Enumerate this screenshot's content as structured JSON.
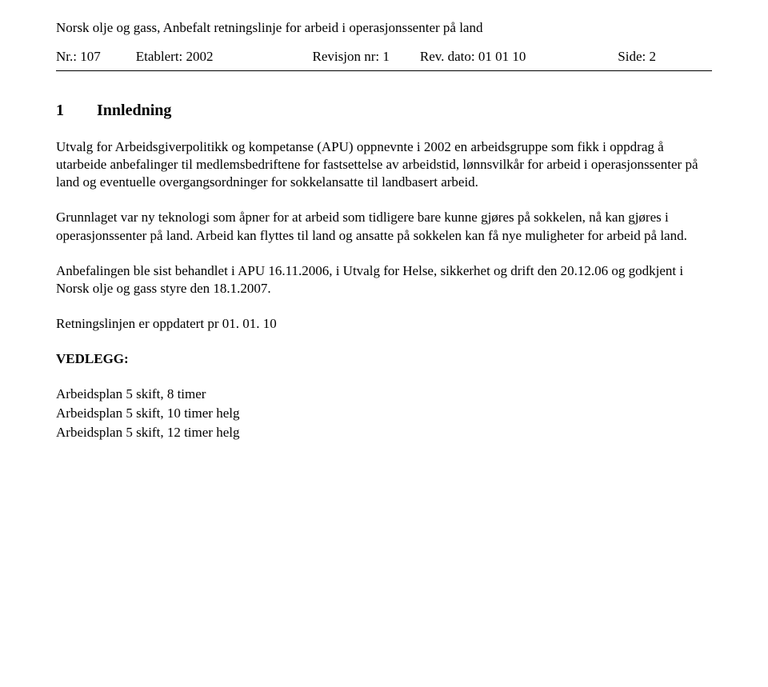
{
  "header": {
    "title_line": "Norsk olje og gass, Anbefalt retningslinje for arbeid i operasjonssenter på land",
    "nr": "Nr.: 107",
    "etablert": "Etablert: 2002",
    "revisjon": "Revisjon nr: 1",
    "rev_dato": "Rev. dato: 01 01 10",
    "side": "Side: 2"
  },
  "section": {
    "number": "1",
    "title": "Innledning"
  },
  "paragraphs": {
    "p1": "Utvalg for Arbeidsgiverpolitikk og kompetanse (APU) oppnevnte i 2002 en arbeidsgruppe som fikk i oppdrag å utarbeide anbefalinger til medlemsbedriftene for fastsettelse av arbeidstid, lønnsvilkår for arbeid i operasjonssenter på land og eventuelle overgangsordninger for sokkelansatte til landbasert arbeid.",
    "p2": "Grunnlaget var ny teknologi som åpner for at arbeid som tidligere bare kunne gjøres på sokkelen, nå kan gjøres i operasjonssenter på land. Arbeid kan flyttes til land og ansatte på sokkelen kan få nye muligheter for arbeid på land.",
    "p3": "Anbefalingen ble sist behandlet i APU 16.11.2006, i Utvalg for Helse, sikkerhet og drift den 20.12.06 og godkjent i Norsk olje og gass styre den 18.1.2007.",
    "p4": "Retningslinjen er oppdatert pr 01. 01. 10"
  },
  "vedlegg": {
    "label": "VEDLEGG:",
    "items": [
      "Arbeidsplan 5 skift, 8 timer",
      "Arbeidsplan 5 skift, 10 timer helg",
      "Arbeidsplan 5 skift, 12 timer helg"
    ]
  }
}
